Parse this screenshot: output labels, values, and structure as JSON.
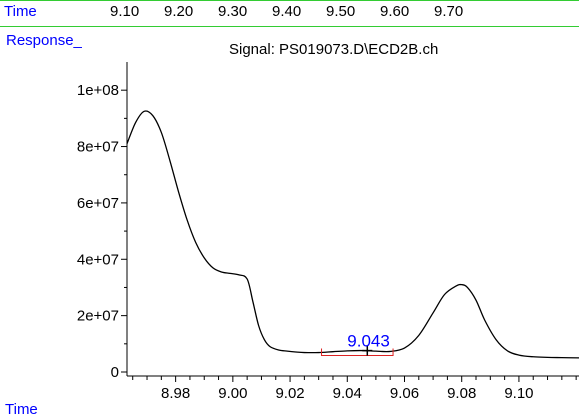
{
  "header": {
    "time_label": "Time",
    "response_label": "Response_",
    "bottom_time_label": "Time"
  },
  "colors": {
    "border": "#33cc33",
    "axis_label": "#0000ff",
    "trace": "#000000",
    "baseline_marker": "#dd2222",
    "peak_label": "#0000ff"
  },
  "chart_data": {
    "type": "line",
    "title": "Signal: PS019073.D\\ECD2B.ch",
    "xlabel": "Time",
    "ylabel": "Response_",
    "xlim": [
      8.963,
      9.121
    ],
    "ylim": [
      0,
      110000000
    ],
    "x_ticks": [
      8.98,
      9.0,
      9.02,
      9.04,
      9.06,
      9.08,
      9.1
    ],
    "x_tick_labels": [
      "8.98",
      "9.00",
      "9.02",
      "9.04",
      "9.06",
      "9.08",
      "9.10"
    ],
    "x_minor_step": 0.005,
    "y_ticks": [
      0,
      20000000,
      40000000,
      60000000,
      80000000,
      100000000
    ],
    "y_tick_labels": [
      "0",
      "2e+07",
      "4e+07",
      "6e+07",
      "8e+07",
      "1e+08"
    ],
    "secondary_x_ticks": [
      9.1,
      9.2,
      9.3,
      9.4,
      9.5,
      9.6,
      9.7
    ],
    "secondary_x_tick_labels": [
      "9.10",
      "9.20",
      "9.30",
      "9.40",
      "9.50",
      "9.60",
      "9.70"
    ],
    "grid": false,
    "series": [
      {
        "x": [
          8.963,
          8.966,
          8.969,
          8.972,
          8.975,
          8.978,
          8.981,
          8.984,
          8.987,
          8.99,
          8.993,
          8.996,
          8.999,
          9.002,
          9.005,
          9.007,
          9.009,
          9.011,
          9.013,
          9.016,
          9.019,
          9.022,
          9.025,
          9.03,
          9.035,
          9.04,
          9.045,
          9.05,
          9.055,
          9.06,
          9.065,
          9.07,
          9.074,
          9.078,
          9.08,
          9.082,
          9.085,
          9.088,
          9.092,
          9.096,
          9.1,
          9.105,
          9.11,
          9.115,
          9.121
        ],
        "y": [
          81000000,
          88500000,
          92500000,
          91000000,
          85000000,
          75000000,
          64000000,
          54000000,
          46000000,
          40500000,
          37000000,
          35500000,
          35000000,
          34500000,
          33000000,
          25000000,
          16500000,
          11500000,
          9000000,
          7800000,
          7400000,
          7100000,
          6900000,
          6900000,
          7200000,
          7500000,
          7600000,
          7400000,
          7300000,
          8500000,
          13000000,
          21000000,
          27500000,
          30500000,
          31000000,
          30000000,
          25500000,
          18500000,
          11500000,
          7500000,
          6000000,
          5400000,
          5200000,
          5100000,
          5000000
        ]
      }
    ],
    "peak_annotation": {
      "label": "9.043",
      "x": 9.047,
      "y": 7600000
    },
    "baseline_marker": {
      "x_start": 9.031,
      "x_end": 9.056,
      "y": 6900000
    }
  }
}
